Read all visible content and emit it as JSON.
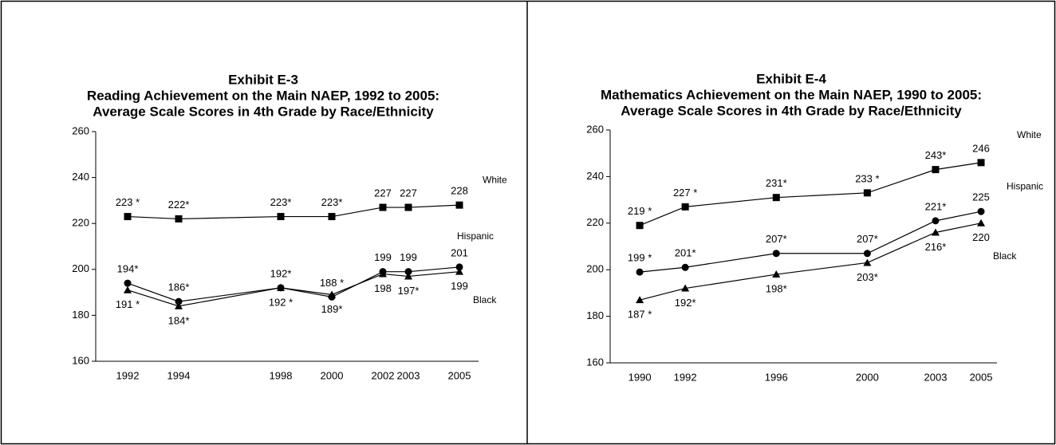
{
  "chart_data": [
    {
      "type": "line",
      "title": "Exhibit E-3",
      "subtitle": [
        "Reading Achievement on the Main NAEP, 1992 to 2005:",
        "Average Scale Scores in 4th Grade by Race/Ethnicity"
      ],
      "x": [
        1992,
        1994,
        1998,
        2000,
        2002,
        2003,
        2005
      ],
      "xlim": [
        1990.75,
        2005.75
      ],
      "xticks": [
        1992,
        1994,
        1998,
        2000,
        2002,
        2003,
        2005
      ],
      "ylim": [
        160,
        260
      ],
      "yticks": [
        160,
        180,
        200,
        220,
        240,
        260
      ],
      "series": [
        {
          "name": "White",
          "color": "#000000",
          "marker": "square",
          "values": [
            223,
            222,
            223,
            223,
            227,
            227,
            228
          ],
          "value_labels": [
            "223 *",
            "222*",
            "223*",
            "223*",
            "227",
            "227",
            "228"
          ]
        },
        {
          "name": "Hispanic",
          "color": "#000000",
          "marker": "circle",
          "values": [
            194,
            186,
            192,
            188,
            199,
            199,
            201
          ],
          "value_labels": [
            "194*",
            "186*",
            "192*",
            "188 *",
            "199",
            "199",
            "201"
          ]
        },
        {
          "name": "Black",
          "color": "#000000",
          "marker": "triangle",
          "values": [
            191,
            184,
            192,
            189,
            198,
            197,
            199
          ],
          "value_labels": [
            "191 *",
            "184*",
            "192 *",
            "189*",
            "198",
            "197*",
            "199"
          ]
        }
      ]
    },
    {
      "type": "line",
      "title": "Exhibit E-4",
      "subtitle": [
        "Mathematics Achievement on the Main NAEP, 1990 to 2005:",
        "Average Scale Scores in 4th Grade by Race/Ethnicity"
      ],
      "x": [
        1990,
        1992,
        1996,
        2000,
        2003,
        2005
      ],
      "xlim": [
        1988.7,
        2005.7
      ],
      "xticks": [
        1990,
        1992,
        1996,
        2000,
        2003,
        2005
      ],
      "ylim": [
        160,
        260
      ],
      "yticks": [
        160,
        180,
        200,
        220,
        240,
        260
      ],
      "series": [
        {
          "name": "White",
          "color": "#000000",
          "marker": "square",
          "values": [
            219,
            227,
            231,
            233,
            243,
            246
          ],
          "value_labels": [
            "219 *",
            "227 *",
            "231*",
            "233 *",
            "243*",
            "246"
          ]
        },
        {
          "name": "Hispanic",
          "color": "#000000",
          "marker": "circle",
          "values": [
            199,
            201,
            207,
            207,
            221,
            225
          ],
          "value_labels": [
            "199 *",
            "201*",
            "207*",
            "207*",
            "221*",
            "225"
          ]
        },
        {
          "name": "Black",
          "color": "#000000",
          "marker": "triangle",
          "values": [
            187,
            192,
            198,
            203,
            216,
            220
          ],
          "value_labels": [
            "187 *",
            "192*",
            "198*",
            "203*",
            "216*",
            "220"
          ]
        }
      ]
    }
  ]
}
